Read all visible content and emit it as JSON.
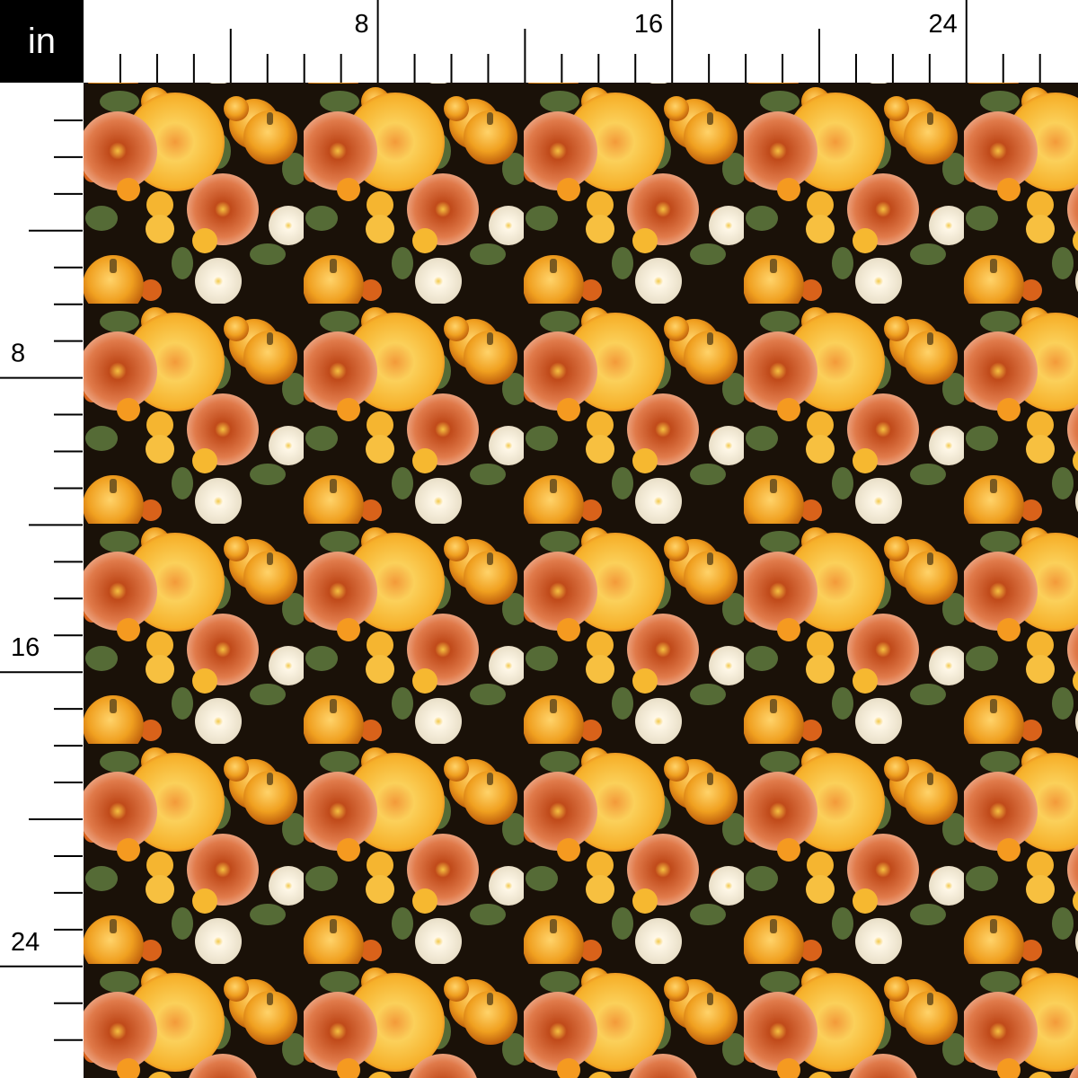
{
  "unit_label": "in",
  "ruler": {
    "units_per_label": 8,
    "top_labels": [
      "8",
      "16",
      "24"
    ],
    "left_labels": [
      "8",
      "16",
      "24"
    ],
    "max_inches_top": 26,
    "max_inches_left": 26
  },
  "fabric": {
    "motifs": [
      "pumpkin",
      "peony",
      "chrysanthemum",
      "white-mum",
      "autumn-leaf"
    ],
    "colors": {
      "background": "#1a1108",
      "pumpkin": "#f0a020",
      "pumpkin_dark": "#d26a10",
      "yellow_flower": "#f7b630",
      "peach_flower": "#e0744a",
      "white_flower": "#f4efe0",
      "leaf": "#556b36",
      "stem": "#7a5a20"
    }
  }
}
